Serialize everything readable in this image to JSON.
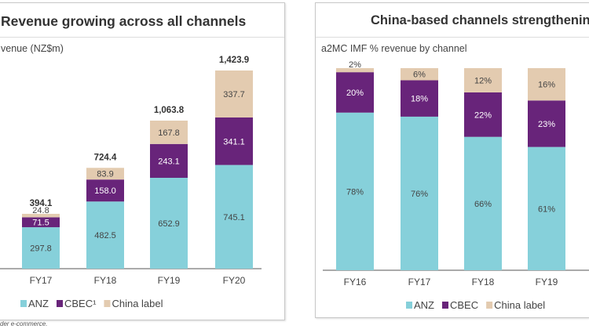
{
  "colors": {
    "ANZ": "#86d0da",
    "CBEC": "#68247a",
    "China label": "#e3cbb0"
  },
  "footnote": "der e-commerce.",
  "chart_data": [
    {
      "type": "bar",
      "stacked": true,
      "title": "Revenue growing across all channels",
      "ylabel": "venue (NZ$m)",
      "categories": [
        "FY17",
        "FY18",
        "FY19",
        "FY20"
      ],
      "series": [
        {
          "name": "ANZ",
          "values": [
            297.8,
            482.5,
            652.9,
            745.1
          ]
        },
        {
          "name": "CBEC¹",
          "values": [
            71.5,
            158.0,
            243.1,
            341.1
          ]
        },
        {
          "name": "China label",
          "values": [
            24.8,
            83.9,
            167.8,
            337.7
          ]
        }
      ],
      "value_labels": [
        [
          "297.8",
          "482.5",
          "652.9",
          "745.1"
        ],
        [
          "71.5",
          "158.0",
          "243.1",
          "341.1"
        ],
        [
          "24.8",
          "83.9",
          "167.8",
          "337.7"
        ]
      ],
      "totals": [
        "394.1",
        "724.4",
        "1,063.8",
        "1,423.9"
      ],
      "ylim": [
        0,
        1423.9
      ],
      "legend": "bottom",
      "grid": false
    },
    {
      "type": "bar",
      "stacked": true,
      "title": "China-based channels strengthenin",
      "ylabel": "a2MC IMF % revenue by channel",
      "categories": [
        "FY16",
        "FY17",
        "FY18",
        "FY19"
      ],
      "series": [
        {
          "name": "ANZ",
          "values": [
            78,
            76,
            66,
            61
          ]
        },
        {
          "name": "CBEC",
          "values": [
            20,
            18,
            22,
            23
          ]
        },
        {
          "name": "China label",
          "values": [
            2,
            6,
            12,
            16
          ]
        }
      ],
      "ylim": [
        0,
        100
      ],
      "legend": "bottom",
      "grid": false
    }
  ]
}
